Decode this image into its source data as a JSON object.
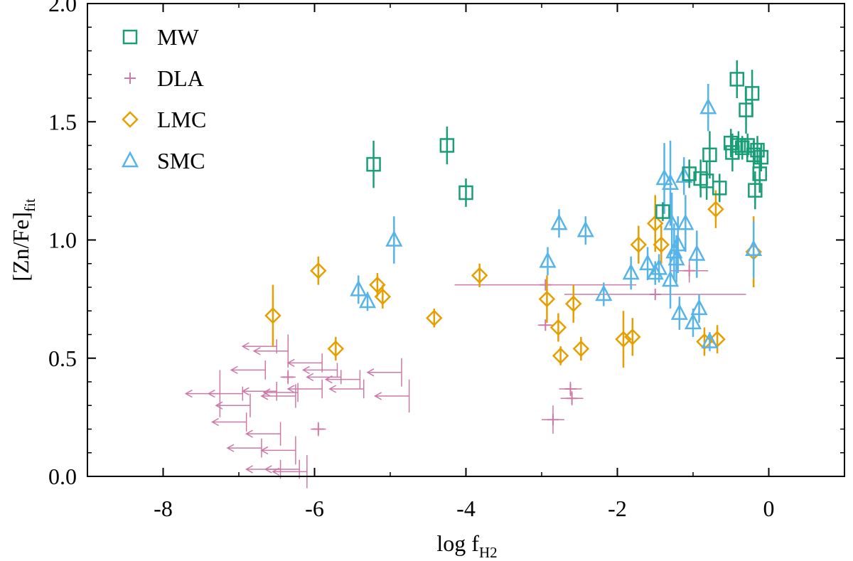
{
  "chart_data": {
    "type": "scatter",
    "xlabel": "log f",
    "xlabel_sub": "H2",
    "ylabel": "[Zn/Fe]",
    "ylabel_sub": "fit",
    "xlim": [
      -9,
      1
    ],
    "ylim": [
      0,
      2
    ],
    "xticks": [
      -8,
      -6,
      -4,
      -2,
      0
    ],
    "xtick_labels": [
      "-8",
      "-6",
      "-4",
      "-2",
      "0"
    ],
    "yticks": [
      0,
      0.5,
      1,
      1.5,
      2
    ],
    "ytick_labels": [
      "0.0",
      "0.5",
      "1.0",
      "1.5",
      "2.0"
    ],
    "grid": false,
    "legend_position": "top-left",
    "series": [
      {
        "name": "MW",
        "marker": "square",
        "color": "#1a9e77",
        "points": [
          {
            "x": -5.22,
            "y": 1.32,
            "yerr": 0.1
          },
          {
            "x": -4.25,
            "y": 1.4,
            "yerr": 0.08
          },
          {
            "x": -4.0,
            "y": 1.2,
            "yerr": 0.06
          },
          {
            "x": -1.4,
            "y": 1.12,
            "yerr": 0.04
          },
          {
            "x": -1.05,
            "y": 1.28,
            "yerr": 0.06
          },
          {
            "x": -0.9,
            "y": 1.26,
            "yerr": 0.08
          },
          {
            "x": -0.78,
            "y": 1.36,
            "yerr": 0.1
          },
          {
            "x": -0.82,
            "y": 1.25,
            "yerr": 0.08
          },
          {
            "x": -0.65,
            "y": 1.22,
            "yerr": 0.06
          },
          {
            "x": -0.42,
            "y": 1.68,
            "yerr": 0.08
          },
          {
            "x": -0.3,
            "y": 1.55,
            "yerr": 0.1
          },
          {
            "x": -0.22,
            "y": 1.62,
            "yerr": 0.1
          },
          {
            "x": -0.5,
            "y": 1.41,
            "yerr": 0.06
          },
          {
            "x": -0.48,
            "y": 1.37,
            "yerr": 0.08
          },
          {
            "x": -0.4,
            "y": 1.4,
            "yerr": 0.06
          },
          {
            "x": -0.35,
            "y": 1.39,
            "yerr": 0.05
          },
          {
            "x": -0.28,
            "y": 1.4,
            "yerr": 0.05
          },
          {
            "x": -0.2,
            "y": 1.36,
            "yerr": 0.06
          },
          {
            "x": -0.15,
            "y": 1.38,
            "yerr": 0.06
          },
          {
            "x": -0.1,
            "y": 1.35,
            "yerr": 0.06
          },
          {
            "x": -0.18,
            "y": 1.21,
            "yerr": 0.08
          },
          {
            "x": -0.12,
            "y": 1.28,
            "yerr": 0.08
          }
        ]
      },
      {
        "name": "DLA",
        "marker": "plus",
        "color": "#cc79a7",
        "points": [
          {
            "x": -6.35,
            "y": 0.42,
            "xerr": 0.1,
            "yerr": 0.03
          },
          {
            "x": -5.95,
            "y": 0.2,
            "xerr": 0.1,
            "yerr": 0.03
          },
          {
            "x": -2.85,
            "y": 0.24,
            "xerr": 0.15,
            "yerr": 0.06
          },
          {
            "x": -2.62,
            "y": 0.37,
            "xerr": 0.15,
            "yerr": 0.03
          },
          {
            "x": -2.6,
            "y": 0.33,
            "xerr": 0.15,
            "yerr": 0.03
          },
          {
            "x": -2.95,
            "y": 0.81,
            "xerr": 1.2,
            "yerr": 0.02
          },
          {
            "x": -2.95,
            "y": 0.64,
            "xerr": 0.1,
            "yerr": 0.02
          },
          {
            "x": -1.5,
            "y": 0.77,
            "xerr": 1.2,
            "yerr": 0.02
          },
          {
            "x": -1.05,
            "y": 0.87,
            "xerr": 0.25,
            "yerr": 0.05
          }
        ],
        "upper_limits": [
          {
            "x": -7.25,
            "y": 0.35,
            "xerr": 0.0,
            "yerr": 0.1
          },
          {
            "x": -6.5,
            "y": 0.36,
            "xerr": 0.0,
            "yerr": 0.04
          },
          {
            "x": -6.22,
            "y": 0.355,
            "xerr": 0.0,
            "yerr": 0.04
          },
          {
            "x": -6.2,
            "y": 0.03,
            "xerr": 0.0,
            "yerr": 0.04
          },
          {
            "x": -6.35,
            "y": 0.53,
            "xerr": 0.0,
            "yerr": 0.07
          },
          {
            "x": -5.9,
            "y": 0.48,
            "xerr": 0.0,
            "yerr": 0.04
          },
          {
            "x": -5.7,
            "y": 0.45,
            "xerr": 0.0,
            "yerr": 0.03
          },
          {
            "x": -5.65,
            "y": 0.42,
            "xerr": 0.0,
            "yerr": 0.03
          },
          {
            "x": -5.9,
            "y": 0.37,
            "xerr": 0.0,
            "yerr": 0.04
          },
          {
            "x": -5.4,
            "y": 0.41,
            "xerr": 0.0,
            "yerr": 0.04
          },
          {
            "x": -5.35,
            "y": 0.37,
            "xerr": 0.0,
            "yerr": 0.04
          },
          {
            "x": -4.85,
            "y": 0.44,
            "xerr": 0.0,
            "yerr": 0.06
          },
          {
            "x": -4.75,
            "y": 0.34,
            "xerr": 0.0,
            "yerr": 0.07
          },
          {
            "x": -6.5,
            "y": 0.55,
            "xerr": 0.0,
            "yerr": 0.03
          },
          {
            "x": -6.65,
            "y": 0.45,
            "xerr": 0.0,
            "yerr": 0.04
          },
          {
            "x": -6.85,
            "y": 0.3,
            "xerr": 0.0,
            "yerr": 0.05
          },
          {
            "x": -6.9,
            "y": 0.23,
            "xerr": 0.0,
            "yerr": 0.04
          },
          {
            "x": -6.45,
            "y": 0.18,
            "xerr": 0.0,
            "yerr": 0.05
          },
          {
            "x": -6.25,
            "y": 0.11,
            "xerr": 0.0,
            "yerr": 0.06
          },
          {
            "x": -6.7,
            "y": 0.12,
            "xerr": 0.0,
            "yerr": 0.04
          },
          {
            "x": -6.45,
            "y": 0.03,
            "xerr": 0.0,
            "yerr": 0.04
          },
          {
            "x": -6.1,
            "y": 0.02,
            "xerr": 0.0,
            "yerr": 0.07
          },
          {
            "x": -6.95,
            "y": 0.35,
            "xerr": 0.0,
            "yerr": 0.03
          },
          {
            "x": -6.25,
            "y": 0.34,
            "xerr": 0.0,
            "yerr": 0.05
          }
        ]
      },
      {
        "name": "LMC",
        "marker": "diamond",
        "color": "#e69f00",
        "points": [
          {
            "x": -6.55,
            "y": 0.68,
            "yerr": 0.13
          },
          {
            "x": -5.95,
            "y": 0.87,
            "yerr": 0.06
          },
          {
            "x": -5.72,
            "y": 0.54,
            "yerr": 0.05
          },
          {
            "x": -5.17,
            "y": 0.81,
            "yerr": 0.05
          },
          {
            "x": -5.1,
            "y": 0.76,
            "yerr": 0.05
          },
          {
            "x": -4.42,
            "y": 0.67,
            "yerr": 0.04
          },
          {
            "x": -3.82,
            "y": 0.85,
            "yerr": 0.05
          },
          {
            "x": -2.93,
            "y": 0.75,
            "yerr": 0.1
          },
          {
            "x": -2.78,
            "y": 0.63,
            "yerr": 0.06
          },
          {
            "x": -2.75,
            "y": 0.51,
            "yerr": 0.04
          },
          {
            "x": -2.58,
            "y": 0.73,
            "yerr": 0.08
          },
          {
            "x": -2.48,
            "y": 0.54,
            "yerr": 0.05
          },
          {
            "x": -1.92,
            "y": 0.58,
            "yerr": 0.12
          },
          {
            "x": -1.8,
            "y": 0.59,
            "yerr": 0.08
          },
          {
            "x": -1.72,
            "y": 0.98,
            "yerr": 0.08
          },
          {
            "x": -1.5,
            "y": 1.07,
            "yerr": 0.12
          },
          {
            "x": -1.42,
            "y": 0.98,
            "yerr": 0.08
          },
          {
            "x": -0.85,
            "y": 0.57,
            "yerr": 0.06
          },
          {
            "x": -0.7,
            "y": 1.13,
            "yerr": 0.08
          },
          {
            "x": -0.68,
            "y": 0.58,
            "yerr": 0.06
          },
          {
            "x": -0.2,
            "y": 0.95,
            "yerr": 0.15
          }
        ]
      },
      {
        "name": "SMC",
        "marker": "triangle",
        "color": "#56b4e9",
        "points": [
          {
            "x": -5.42,
            "y": 0.79,
            "yerr": 0.06
          },
          {
            "x": -5.3,
            "y": 0.74,
            "yerr": 0.04
          },
          {
            "x": -4.95,
            "y": 1.0,
            "yerr": 0.1
          },
          {
            "x": -2.92,
            "y": 0.91,
            "yerr": 0.06
          },
          {
            "x": -2.77,
            "y": 1.07,
            "yerr": 0.06
          },
          {
            "x": -2.42,
            "y": 1.04,
            "yerr": 0.06
          },
          {
            "x": -2.18,
            "y": 0.77,
            "yerr": 0.05
          },
          {
            "x": -1.82,
            "y": 0.86,
            "yerr": 0.07
          },
          {
            "x": -1.6,
            "y": 0.9,
            "yerr": 0.07
          },
          {
            "x": -1.5,
            "y": 0.86,
            "yerr": 0.05
          },
          {
            "x": -1.45,
            "y": 0.88,
            "yerr": 0.06
          },
          {
            "x": -1.38,
            "y": 1.26,
            "yerr": 0.15
          },
          {
            "x": -1.3,
            "y": 1.24,
            "yerr": 0.18
          },
          {
            "x": -1.28,
            "y": 1.07,
            "yerr": 0.13
          },
          {
            "x": -1.25,
            "y": 0.95,
            "yerr": 0.12
          },
          {
            "x": -1.22,
            "y": 0.92,
            "yerr": 0.1
          },
          {
            "x": -1.3,
            "y": 0.83,
            "yerr": 0.12
          },
          {
            "x": -1.2,
            "y": 0.98,
            "yerr": 0.12
          },
          {
            "x": -1.18,
            "y": 0.69,
            "yerr": 0.07
          },
          {
            "x": -1.12,
            "y": 1.27,
            "yerr": 0.08
          },
          {
            "x": -1.1,
            "y": 1.07,
            "yerr": 0.12
          },
          {
            "x": -1.0,
            "y": 0.65,
            "yerr": 0.06
          },
          {
            "x": -0.95,
            "y": 0.94,
            "yerr": 0.1
          },
          {
            "x": -0.92,
            "y": 0.71,
            "yerr": 0.06
          },
          {
            "x": -0.8,
            "y": 1.56,
            "yerr": 0.1
          },
          {
            "x": -0.78,
            "y": 0.57,
            "yerr": 0.04
          },
          {
            "x": -0.2,
            "y": 0.96,
            "yerr": 0.12
          }
        ]
      }
    ]
  }
}
